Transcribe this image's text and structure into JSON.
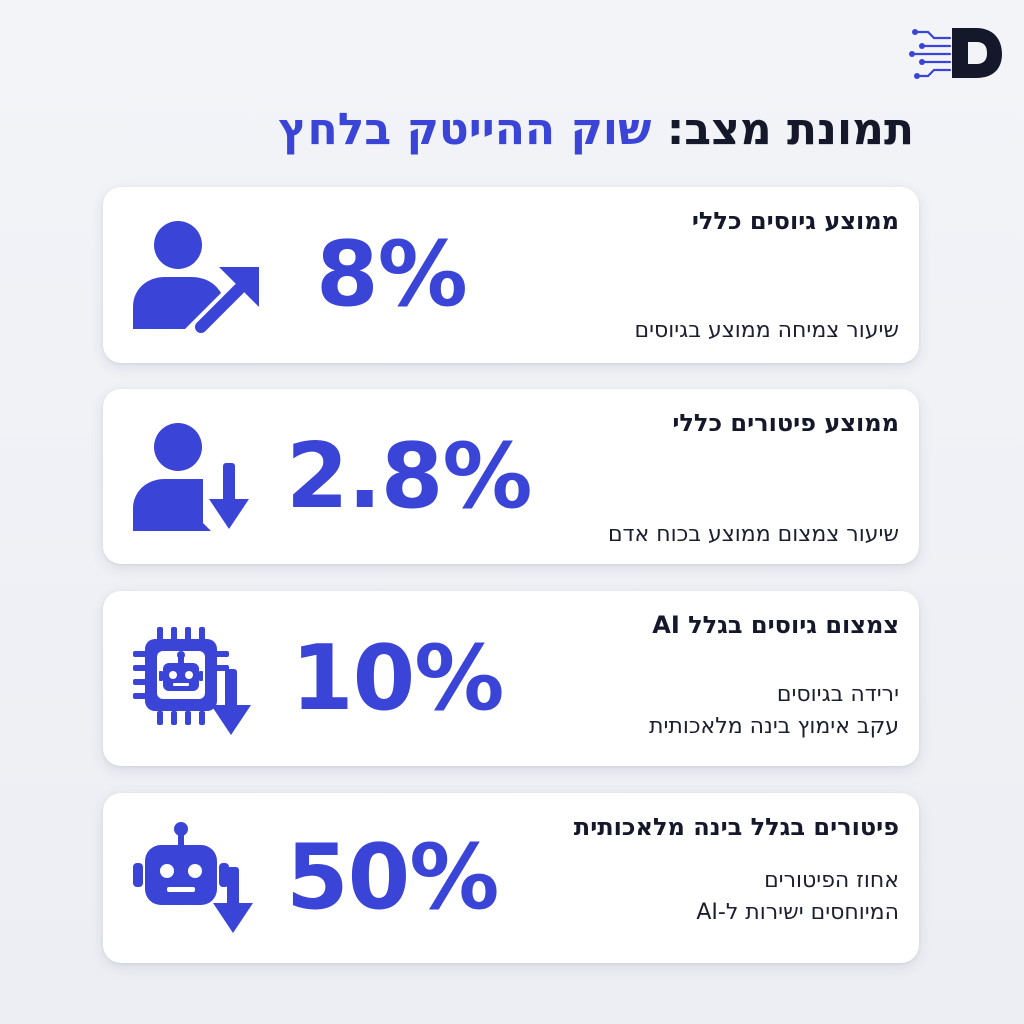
{
  "brand": {
    "logo": "brand-logo-icon",
    "accent": "#3a44d6",
    "dark": "#15172a"
  },
  "title": {
    "prefix": "תמונת מצב:",
    "highlight": "שוק ההייטק בלחץ"
  },
  "cards": [
    {
      "heading": "ממוצע גיוסים כללי",
      "value": "8%",
      "lines": [
        "שיעור צמיחה ממוצע בגיוסים"
      ],
      "icon": "person-trend-up-icon"
    },
    {
      "heading": "ממוצע פיטורים כללי",
      "value": "2.8%",
      "lines": [
        "שיעור צמצום ממוצע בכוח אדם"
      ],
      "icon": "person-arrow-down-icon"
    },
    {
      "heading": "צמצום גיוסים בגלל AI",
      "value": "10%",
      "lines": [
        "ירידה בגיוסים",
        "עקב אימוץ בינה מלאכותית"
      ],
      "icon": "ai-chip-arrow-down-icon"
    },
    {
      "heading": "פיטורים בגלל בינה מלאכותית",
      "value": "50%",
      "lines": [
        "אחוז הפיטורים",
        "המיוחסים ישירות ל-AI"
      ],
      "icon": "robot-arrow-down-icon"
    }
  ]
}
